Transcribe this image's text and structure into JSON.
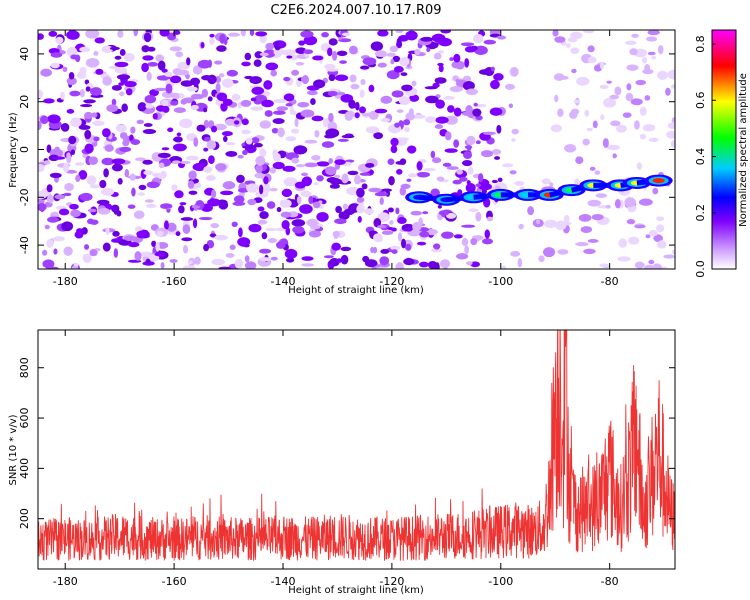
{
  "title": "C2E6.2024.007.10.17.R09",
  "chart_data": [
    {
      "type": "heatmap",
      "xlabel": "Height of straight line (km)",
      "ylabel": "Frequency (Hz)",
      "xlim": [
        -185,
        -68
      ],
      "ylim": [
        -50,
        50
      ],
      "xticks": [
        -180,
        -160,
        -140,
        -120,
        -100,
        -80
      ],
      "yticks": [
        -40,
        -20,
        0,
        20,
        40
      ],
      "colorbar": {
        "label": "Normalized spectral amplitude",
        "range": [
          0.0,
          0.85
        ],
        "ticks": [
          0.0,
          0.2,
          0.4,
          0.6,
          0.8
        ],
        "colormap": [
          "#ffffff",
          "#7f00ff",
          "#0000ff",
          "#00ffff",
          "#00ff00",
          "#ffff00",
          "#ff0000",
          "#ff00ff"
        ]
      },
      "signal_track": [
        {
          "x": -115,
          "y": -20,
          "amp": 0.2
        },
        {
          "x": -110,
          "y": -21,
          "amp": 0.15
        },
        {
          "x": -105,
          "y": -20,
          "amp": 0.22
        },
        {
          "x": -100,
          "y": -19,
          "amp": 0.35
        },
        {
          "x": -95,
          "y": -19,
          "amp": 0.3
        },
        {
          "x": -91,
          "y": -19,
          "amp": 0.55
        },
        {
          "x": -87,
          "y": -17,
          "amp": 0.4
        },
        {
          "x": -83,
          "y": -15,
          "amp": 0.5
        },
        {
          "x": -78,
          "y": -15,
          "amp": 0.45
        },
        {
          "x": -75,
          "y": -14,
          "amp": 0.5
        },
        {
          "x": -71,
          "y": -13,
          "amp": 0.55
        }
      ]
    },
    {
      "type": "line",
      "xlabel": "Height of straight line (km)",
      "ylabel": "SNR (10 * v/v)",
      "xlim": [
        -185,
        -68
      ],
      "ylim": [
        0,
        950
      ],
      "xticks": [
        -180,
        -160,
        -140,
        -120,
        -100,
        -80
      ],
      "yticks": [
        200,
        400,
        600,
        800
      ],
      "color": "#ee3333",
      "series": [
        {
          "x": [
            -185,
            -180,
            -175,
            -170,
            -165,
            -160,
            -155,
            -150,
            -145,
            -140,
            -135,
            -130,
            -125,
            -120,
            -115,
            -110,
            -105,
            -100,
            -97,
            -94,
            -92,
            -91,
            -90,
            -89,
            -88.5,
            -88,
            -87.5,
            -87,
            -86,
            -84,
            -82,
            -80,
            -79,
            -78,
            -77,
            -76,
            -75,
            -74,
            -73,
            -72,
            -71,
            -70,
            -69,
            -68
          ],
          "y": [
            120,
            130,
            125,
            140,
            130,
            125,
            135,
            130,
            128,
            135,
            130,
            140,
            132,
            130,
            135,
            140,
            150,
            160,
            170,
            160,
            180,
            350,
            700,
            820,
            600,
            880,
            400,
            300,
            250,
            260,
            280,
            420,
            320,
            260,
            350,
            450,
            580,
            250,
            300,
            420,
            520,
            380,
            250,
            210
          ]
        }
      ]
    }
  ]
}
